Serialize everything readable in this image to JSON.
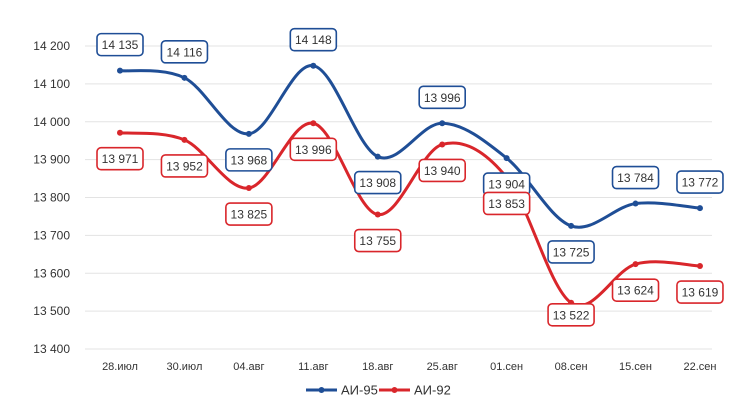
{
  "chart_data": {
    "type": "line",
    "title": "",
    "xlabel": "",
    "ylabel": "",
    "categories": [
      "28.июл",
      "30.июл",
      "04.авг",
      "11.авг",
      "18.авг",
      "25.авг",
      "01.сен",
      "08.сен",
      "15.сен",
      "22.сен"
    ],
    "y_ticks": [
      "13 400",
      "13 500",
      "13 600",
      "13 700",
      "13 800",
      "13 900",
      "14 000",
      "14 100",
      "14 200"
    ],
    "ylim": [
      13400,
      14200
    ],
    "grid": true,
    "legend_position": "bottom",
    "series": [
      {
        "name": "АИ-95",
        "color": "#1f4e96",
        "values": [
          14135,
          14116,
          13968,
          14148,
          13908,
          13996,
          13904,
          13725,
          13784,
          13772
        ],
        "labels": [
          "14 135",
          "14 116",
          "13 968",
          "14 148",
          "13 908",
          "13 996",
          "13 904",
          "13 725",
          "13 784",
          "13 772"
        ]
      },
      {
        "name": "АИ-92",
        "color": "#d9262b",
        "values": [
          13971,
          13952,
          13825,
          13996,
          13755,
          13940,
          13853,
          13522,
          13624,
          13619
        ],
        "labels": [
          "13 971",
          "13 952",
          "13 825",
          "13 996",
          "13 755",
          "13 940",
          "13 853",
          "13 522",
          "13 624",
          "13 619"
        ]
      }
    ]
  }
}
